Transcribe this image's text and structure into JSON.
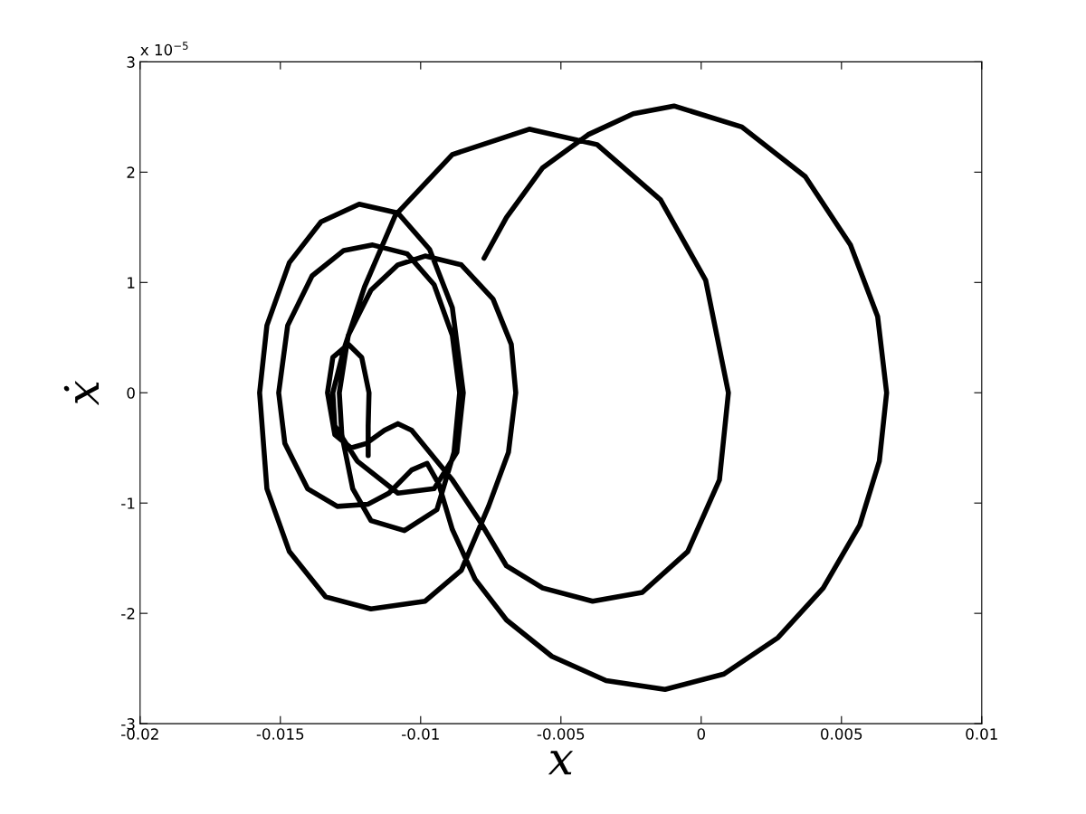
{
  "chart_data": {
    "type": "line",
    "xlabel": "x",
    "ylabel": "ẋ",
    "annotations": [
      "x 10$^{−5}$"
    ],
    "xlim": [
      -0.02,
      0.01
    ],
    "xticks": [
      -0.02,
      -0.015,
      -0.01,
      -0.005,
      0,
      0.005,
      0.01
    ],
    "ylim": [
      -3,
      3
    ],
    "yticks": [
      -3,
      -2,
      -1,
      0,
      1,
      2,
      3
    ],
    "grid": false,
    "marker": "none",
    "line_style": "solid",
    "series": [
      {
        "color": "#000000",
        "x": [
          -0.00774,
          -0.00694,
          -0.00565,
          -0.00403,
          -0.00242,
          -0.00097,
          0.00145,
          0.00371,
          0.00532,
          0.00629,
          0.00661,
          0.00635,
          0.00565,
          0.00435,
          0.00274,
          0.00081,
          -0.00129,
          -0.00339,
          -0.00532,
          -0.00694,
          -0.00806,
          -0.00887,
          -0.00935,
          -0.00977,
          -0.01032,
          -0.01113,
          -0.01187,
          -0.01297,
          -0.01403,
          -0.01484,
          -0.01506,
          -0.01474,
          -0.01387,
          -0.01274,
          -0.01171,
          -0.01048,
          -0.00952,
          -0.00887,
          -0.00861,
          -0.00881,
          -0.00942,
          -0.01058,
          -0.01177,
          -0.01242,
          -0.01281,
          -0.0129,
          -0.01258,
          -0.01177,
          -0.01081,
          -0.00984,
          -0.00855,
          -0.00742,
          -0.00677,
          -0.00661,
          -0.00687,
          -0.00758,
          -0.00855,
          -0.00984,
          -0.01177,
          -0.01339,
          -0.01468,
          -0.01548,
          -0.01574,
          -0.01548,
          -0.01468,
          -0.01355,
          -0.01219,
          -0.01081,
          -0.00968,
          -0.00887,
          -0.00848,
          -0.00871,
          -0.00952,
          -0.01081,
          -0.01226,
          -0.01306,
          -0.01313,
          -0.01274,
          -0.012,
          -0.0109,
          -0.00887,
          -0.00613,
          -0.00371,
          -0.00145,
          0.00016,
          0.00097,
          0.00065,
          -0.00048,
          -0.0021,
          -0.00387,
          -0.00565,
          -0.00694,
          -0.0079,
          -0.00887,
          -0.00968,
          -0.01032,
          -0.01081,
          -0.01129,
          -0.01194,
          -0.01248,
          -0.01306,
          -0.01332,
          -0.01313,
          -0.01258,
          -0.0121,
          -0.01184,
          -0.01187,
          -0.01187
        ],
        "values": [
          1.22,
          1.59,
          2.04,
          2.34,
          2.53,
          2.6,
          2.41,
          1.96,
          1.34,
          0.69,
          0,
          -0.62,
          -1.2,
          -1.77,
          -2.22,
          -2.55,
          -2.69,
          -2.61,
          -2.39,
          -2.06,
          -1.69,
          -1.24,
          -0.83,
          -0.64,
          -0.7,
          -0.91,
          -1.01,
          -1.03,
          -0.87,
          -0.46,
          0,
          0.61,
          1.06,
          1.29,
          1.34,
          1.26,
          0.98,
          0.52,
          0,
          -0.54,
          -1.06,
          -1.25,
          -1.16,
          -0.87,
          -0.38,
          0,
          0.52,
          0.93,
          1.16,
          1.24,
          1.16,
          0.85,
          0.44,
          0,
          -0.54,
          -1.03,
          -1.61,
          -1.89,
          -1.96,
          -1.85,
          -1.44,
          -0.87,
          0,
          0.61,
          1.18,
          1.55,
          1.71,
          1.63,
          1.3,
          0.77,
          0,
          -0.54,
          -0.87,
          -0.91,
          -0.62,
          -0.3,
          0,
          0.39,
          0.96,
          1.61,
          2.16,
          2.39,
          2.25,
          1.75,
          1.02,
          0,
          -0.79,
          -1.44,
          -1.81,
          -1.89,
          -1.77,
          -1.57,
          -1.16,
          -0.79,
          -0.54,
          -0.34,
          -0.28,
          -0.34,
          -0.46,
          -0.5,
          -0.38,
          0,
          0.32,
          0.44,
          0.32,
          0,
          -0.3,
          -0.57
        ]
      }
    ]
  }
}
